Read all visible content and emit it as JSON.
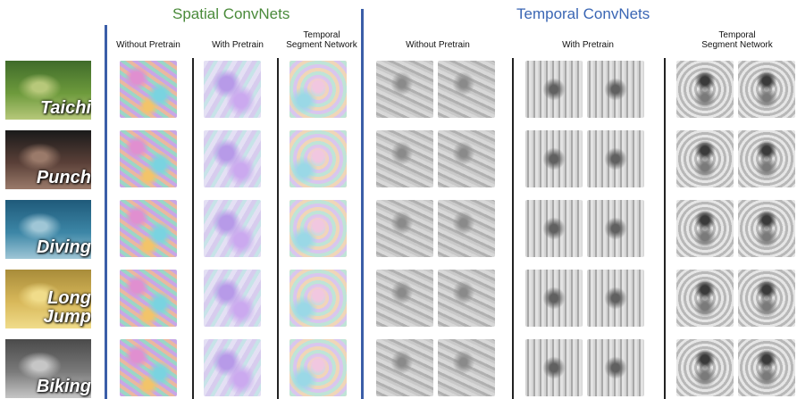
{
  "headers": {
    "spatial": "Spatial ConvNets",
    "temporal": "Temporal ConvNets"
  },
  "column_labels": {
    "without_pretrain": "Without Pretrain",
    "with_pretrain": "With Pretrain",
    "tsn": "Temporal\nSegment Network"
  },
  "rows": [
    {
      "label": "Taichi",
      "scene_colors": [
        "#3f6b2a",
        "#6d9a3c",
        "#b7c87a"
      ]
    },
    {
      "label": "Punch",
      "scene_colors": [
        "#1a1a1a",
        "#5a4038",
        "#9a7a6a"
      ]
    },
    {
      "label": "Diving",
      "scene_colors": [
        "#1f5a7a",
        "#3c86a6",
        "#9fc6d6"
      ]
    },
    {
      "label": "Long\nJump",
      "scene_colors": [
        "#a88c3a",
        "#d8b85a",
        "#f0dc8a"
      ]
    },
    {
      "label": "Biking",
      "scene_colors": [
        "#4a4a4a",
        "#7a7a7a",
        "#c6c6c6"
      ]
    }
  ]
}
